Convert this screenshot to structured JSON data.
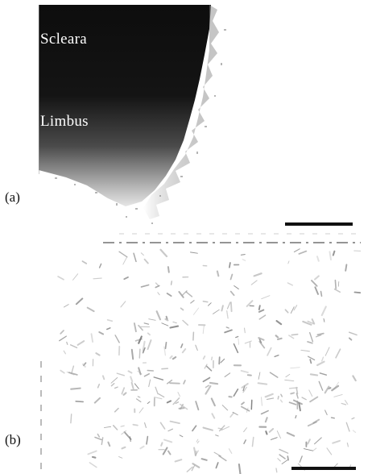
{
  "figure": {
    "panel_a": {
      "label": "(a)",
      "regions": {
        "sclera": "Scleara",
        "limbus": "Limbus"
      }
    },
    "panel_b": {
      "label": "(b)"
    }
  },
  "colors": {
    "tissue_dark": "#0d0d0d",
    "fiber_gray": "#8a8a8a",
    "scale_bar": "#111111",
    "background": "#ffffff"
  }
}
